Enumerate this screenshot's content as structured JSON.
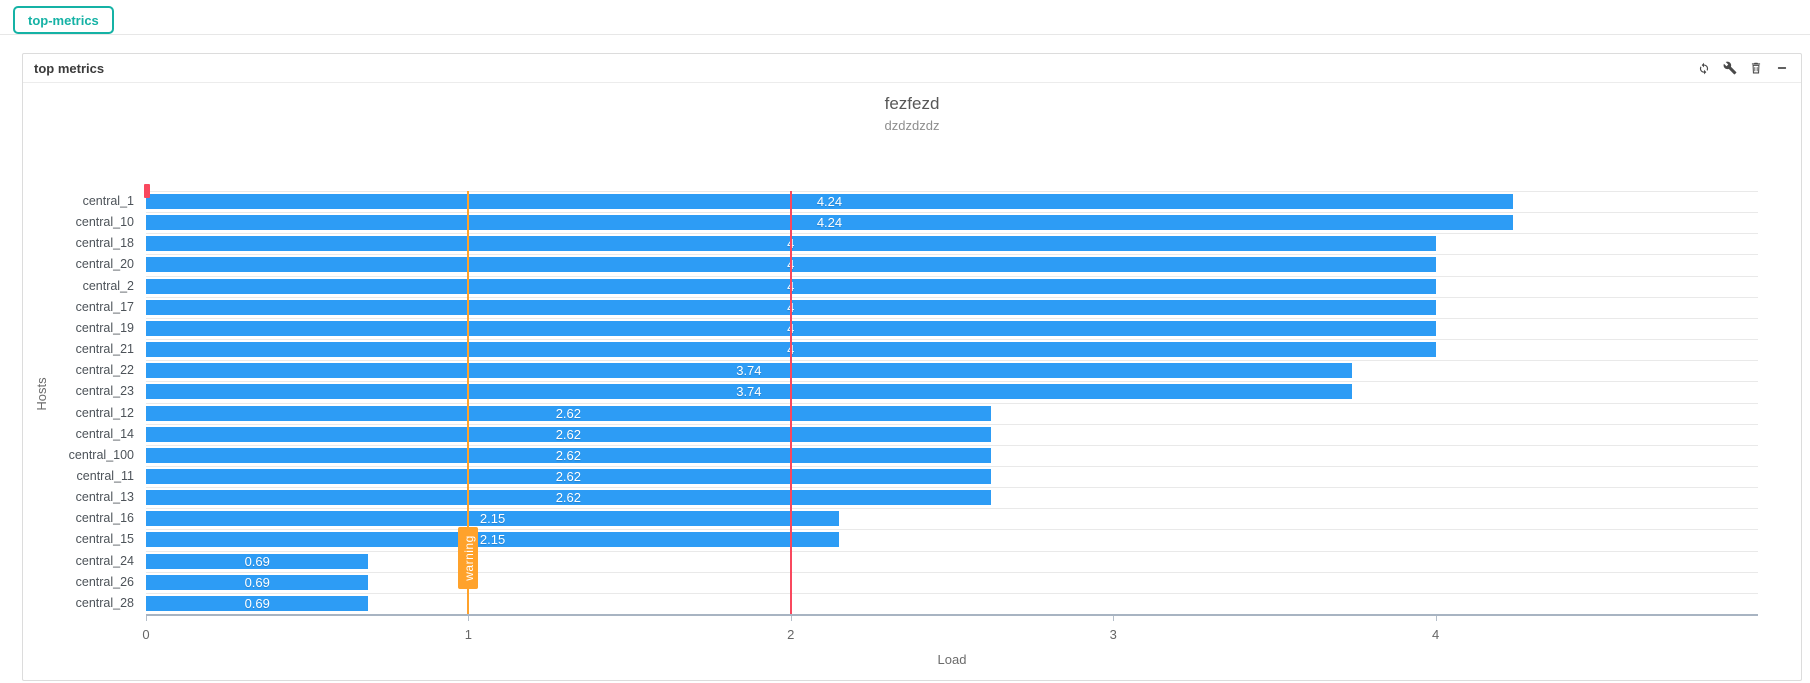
{
  "tab": {
    "label": "top-metrics"
  },
  "panel": {
    "title": "top metrics",
    "toolbar_icons": [
      "refresh-icon",
      "wrench-icon",
      "trash-icon",
      "collapse-icon"
    ]
  },
  "colors": {
    "tab_teal": "#15b2a5",
    "bar_blue": "#2d9cf5",
    "warning_orange": "#ffa22b",
    "critical_red": "#f9485e",
    "axis_line": "#a8b4c2",
    "grid_line": "#e9e9e9"
  },
  "chart_data": {
    "type": "bar",
    "orientation": "horizontal",
    "title": "fezfezd",
    "subtitle": "dzdzdzdz",
    "xlabel": "Load",
    "ylabel": "Hosts",
    "xlim": [
      0,
      5
    ],
    "xticks": [
      0,
      1,
      2,
      3,
      4
    ],
    "grid": true,
    "legend": false,
    "categories": [
      "central_1",
      "central_10",
      "central_18",
      "central_20",
      "central_2",
      "central_17",
      "central_19",
      "central_21",
      "central_22",
      "central_23",
      "central_12",
      "central_14",
      "central_100",
      "central_11",
      "central_13",
      "central_16",
      "central_15",
      "central_24",
      "central_26",
      "central_28"
    ],
    "values": [
      4.24,
      4.24,
      4,
      4,
      4,
      4,
      4,
      4,
      3.74,
      3.74,
      2.62,
      2.62,
      2.62,
      2.62,
      2.62,
      2.15,
      2.15,
      0.69,
      0.69,
      0.69
    ],
    "bar_color": "#2d9cf5",
    "value_label_color": "#ffffff",
    "marklines": [
      {
        "x": 1,
        "label": "warning",
        "color": "#ffa22b"
      },
      {
        "x": 2,
        "label": "",
        "color": "#f9485e"
      }
    ]
  }
}
